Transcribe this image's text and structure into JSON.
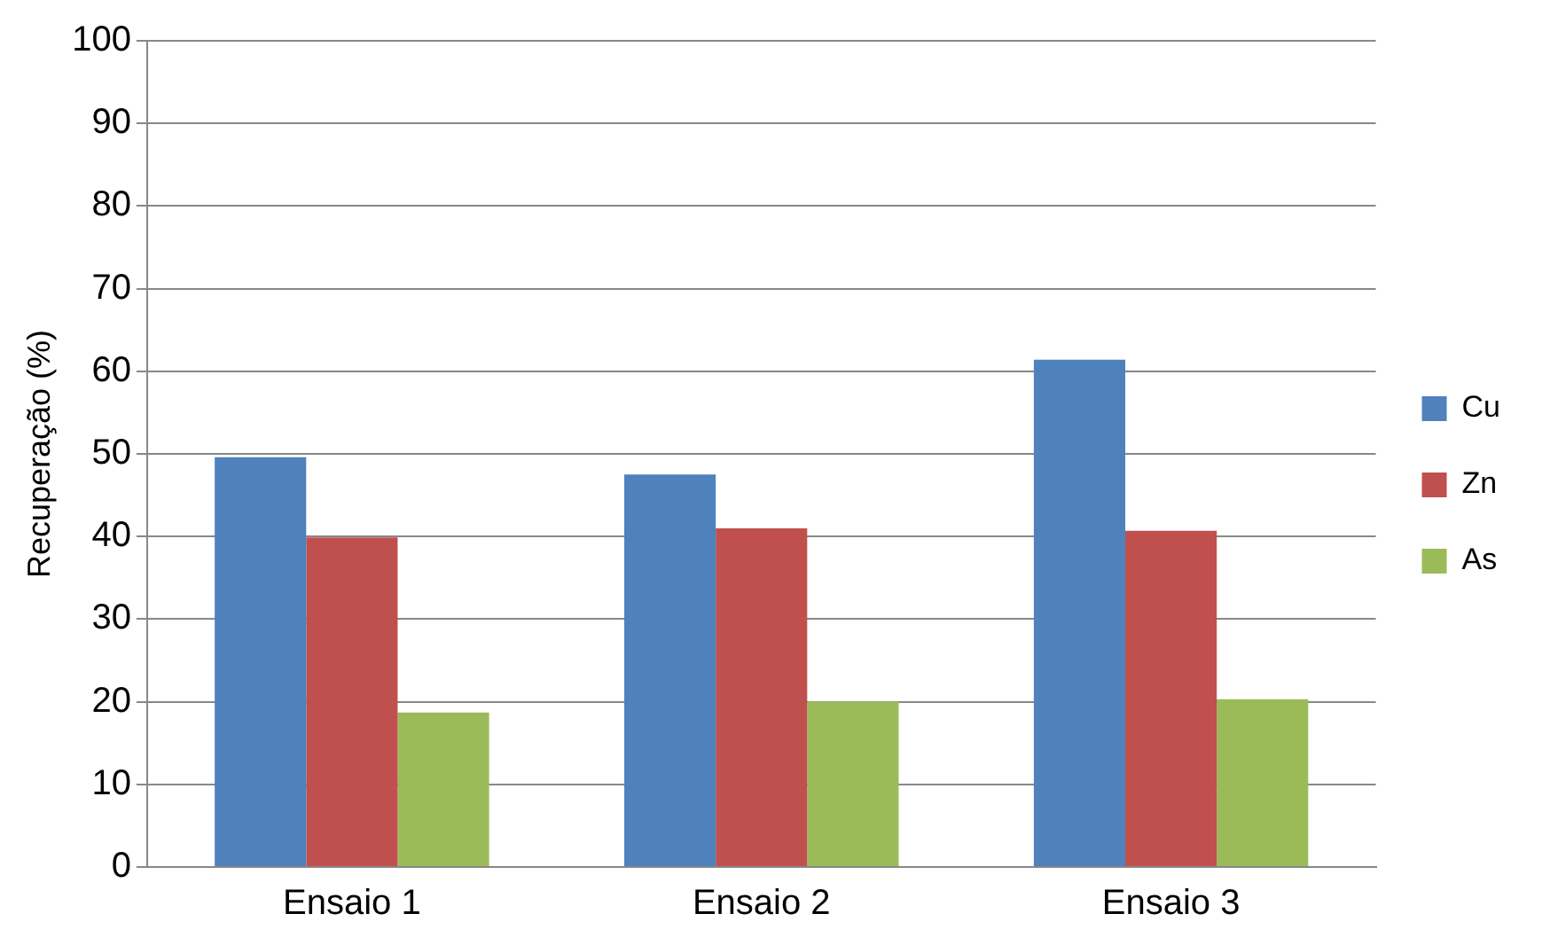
{
  "chart_data": {
    "type": "bar",
    "ylabel": "Recuperação (%)",
    "categories": [
      "Ensaio 1",
      "Ensaio 2",
      "Ensaio 3"
    ],
    "series": [
      {
        "name": "Cu",
        "color": "#4f81bd",
        "values": [
          49.6,
          47.5,
          61.4
        ]
      },
      {
        "name": "Zn",
        "color": "#c0504d",
        "values": [
          39.9,
          41.0,
          40.7
        ]
      },
      {
        "name": "As",
        "color": "#9bbb59",
        "values": [
          18.7,
          20.0,
          20.3
        ]
      }
    ],
    "ylim": [
      0,
      100
    ],
    "yticks": [
      0,
      10,
      20,
      30,
      40,
      50,
      60,
      70,
      80,
      90,
      100
    ],
    "grid": "y",
    "legend": "right"
  }
}
